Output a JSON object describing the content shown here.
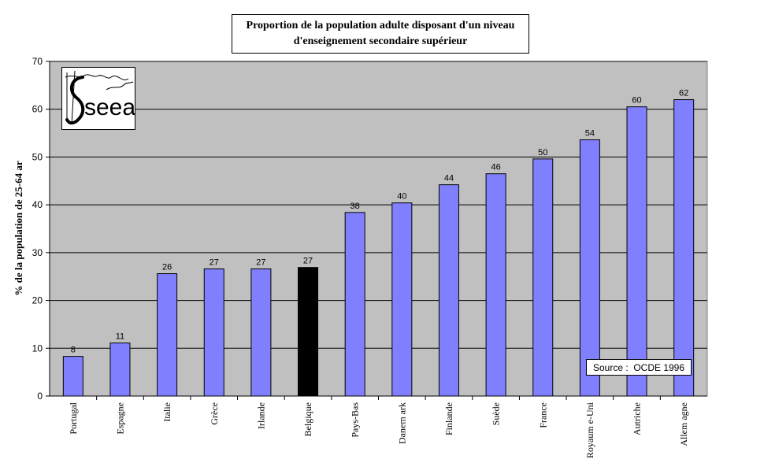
{
  "chart_data": {
    "type": "bar",
    "title_lines": [
      "Proportion de la population adulte disposant  d'un niveau",
      "d'enseignement secondaire supérieur"
    ],
    "ylabel": "% de la population de 25-64 ar",
    "xlabel": "",
    "ylim": [
      0,
      70
    ],
    "yticks": [
      0,
      10,
      20,
      30,
      40,
      50,
      60,
      70
    ],
    "grid": true,
    "categories": [
      "Portugal",
      "Espagne",
      "Italie",
      "Grèce",
      "Irlande",
      "Belgique",
      "Pays-Bas",
      "Danem ark",
      "Finlande",
      "Suède",
      "France",
      "Royaum e-Uni",
      "Autriche",
      "Allem agne"
    ],
    "values": [
      8.3,
      11.1,
      25.6,
      26.6,
      26.6,
      26.9,
      38.4,
      40.4,
      44.2,
      46.5,
      49.6,
      53.6,
      60.5,
      62.0
    ],
    "data_labels": [
      "8",
      "11",
      "26",
      "27",
      "27",
      "27",
      "38",
      "40",
      "44",
      "46",
      "50",
      "54",
      "60",
      "62"
    ],
    "highlight_category": "Belgique",
    "colors": {
      "bar": "#8080ff",
      "highlight": "#000000",
      "plot_bg": "#c0c0c0",
      "grid": "#000000"
    },
    "annotation": "Source :  OCDE 1996",
    "logo_text": "seea"
  }
}
